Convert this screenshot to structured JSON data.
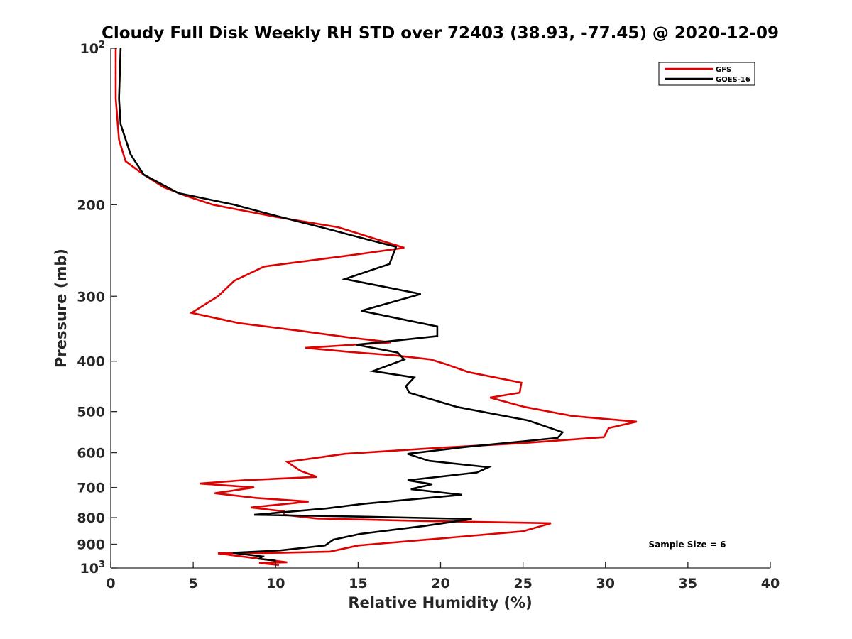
{
  "chart_data": {
    "type": "line",
    "title": "Cloudy Full Disk Weekly RH STD over 72403 (38.93, -77.45) @ 2020-12-09",
    "xlabel": "Relative Humidity (%)",
    "ylabel": "Pressure (mb)",
    "xlim": [
      0,
      40
    ],
    "ylim": [
      100,
      1000
    ],
    "y_scale": "log",
    "y_reversed": true,
    "grid": false,
    "legend_position": "top-right",
    "x_ticks": [
      "0",
      "5",
      "10",
      "15",
      "20",
      "25",
      "30",
      "35",
      "40"
    ],
    "y_ticks": [
      {
        "value": 100,
        "label": "10",
        "exp": "2"
      },
      {
        "value": 200,
        "label": "200"
      },
      {
        "value": 300,
        "label": "300"
      },
      {
        "value": 400,
        "label": "400"
      },
      {
        "value": 500,
        "label": "500"
      },
      {
        "value": 600,
        "label": "600"
      },
      {
        "value": 700,
        "label": "700"
      },
      {
        "value": 800,
        "label": "800"
      },
      {
        "value": 900,
        "label": "900"
      },
      {
        "value": 1000,
        "label": "10",
        "exp": "3"
      }
    ],
    "series": [
      {
        "name": "GFS",
        "color": "#e00000",
        "points": [
          [
            0.3,
            100
          ],
          [
            0.3,
            125
          ],
          [
            0.5,
            150
          ],
          [
            0.9,
            165
          ],
          [
            2.0,
            175
          ],
          [
            3.2,
            185
          ],
          [
            4.5,
            192
          ],
          [
            6.2,
            200
          ],
          [
            10.0,
            211
          ],
          [
            13.8,
            221
          ],
          [
            16.3,
            234
          ],
          [
            17.8,
            242
          ],
          [
            14.2,
            251
          ],
          [
            9.3,
            263
          ],
          [
            7.5,
            280
          ],
          [
            6.5,
            300
          ],
          [
            4.9,
            323
          ],
          [
            7.8,
            338
          ],
          [
            11.6,
            350
          ],
          [
            14.4,
            360
          ],
          [
            17.0,
            368
          ],
          [
            11.8,
            377
          ],
          [
            14.5,
            384
          ],
          [
            17.3,
            390
          ],
          [
            19.4,
            397
          ],
          [
            20.3,
            405
          ],
          [
            21.7,
            420
          ],
          [
            24.9,
            440
          ],
          [
            24.8,
            460
          ],
          [
            23.0,
            470
          ],
          [
            25.1,
            490
          ],
          [
            28.0,
            510
          ],
          [
            31.9,
            523
          ],
          [
            30.2,
            538
          ],
          [
            29.9,
            560
          ],
          [
            25.0,
            575
          ],
          [
            20.0,
            587
          ],
          [
            14.2,
            603
          ],
          [
            10.7,
            625
          ],
          [
            11.5,
            650
          ],
          [
            12.5,
            668
          ],
          [
            8.0,
            678
          ],
          [
            5.4,
            688
          ],
          [
            8.7,
            700
          ],
          [
            6.3,
            718
          ],
          [
            8.8,
            733
          ],
          [
            12.0,
            745
          ],
          [
            8.5,
            765
          ],
          [
            10.5,
            778
          ],
          [
            10.5,
            790
          ],
          [
            12.5,
            803
          ],
          [
            19.0,
            812
          ],
          [
            26.7,
            820
          ],
          [
            25.0,
            850
          ],
          [
            19.5,
            880
          ],
          [
            15.0,
            905
          ],
          [
            13.3,
            930
          ],
          [
            10.3,
            935
          ],
          [
            6.5,
            937
          ],
          [
            8.5,
            955
          ],
          [
            10.7,
            975
          ],
          [
            9.0,
            978
          ],
          [
            10.2,
            987
          ]
        ]
      },
      {
        "name": "GOES-16",
        "color": "#000000",
        "points": [
          [
            0.6,
            100
          ],
          [
            0.5,
            125
          ],
          [
            0.6,
            140
          ],
          [
            1.2,
            160
          ],
          [
            2.0,
            175
          ],
          [
            4.1,
            190
          ],
          [
            7.5,
            200
          ],
          [
            10.0,
            210
          ],
          [
            13.0,
            222
          ],
          [
            15.5,
            233
          ],
          [
            17.3,
            241
          ],
          [
            16.9,
            260
          ],
          [
            14.2,
            278
          ],
          [
            18.8,
            297
          ],
          [
            15.2,
            320
          ],
          [
            19.8,
            343
          ],
          [
            19.8,
            358
          ],
          [
            14.9,
            372
          ],
          [
            17.4,
            385
          ],
          [
            17.8,
            397
          ],
          [
            15.9,
            418
          ],
          [
            18.4,
            430
          ],
          [
            17.9,
            447
          ],
          [
            18.1,
            460
          ],
          [
            21.0,
            490
          ],
          [
            25.3,
            520
          ],
          [
            27.4,
            548
          ],
          [
            27.1,
            562
          ],
          [
            21.5,
            585
          ],
          [
            18.0,
            603
          ],
          [
            19.3,
            622
          ],
          [
            22.9,
            640
          ],
          [
            22.2,
            655
          ],
          [
            18.0,
            678
          ],
          [
            19.5,
            690
          ],
          [
            18.2,
            705
          ],
          [
            21.3,
            723
          ],
          [
            15.4,
            752
          ],
          [
            13.1,
            768
          ],
          [
            8.7,
            790
          ],
          [
            15.7,
            797
          ],
          [
            21.9,
            805
          ],
          [
            19.0,
            830
          ],
          [
            15.1,
            860
          ],
          [
            13.5,
            882
          ],
          [
            13.0,
            905
          ],
          [
            10.3,
            925
          ],
          [
            7.4,
            935
          ],
          [
            9.2,
            950
          ],
          [
            9.0,
            960
          ],
          [
            10.0,
            968
          ]
        ]
      }
    ],
    "annotation": "Sample Size = 6"
  }
}
